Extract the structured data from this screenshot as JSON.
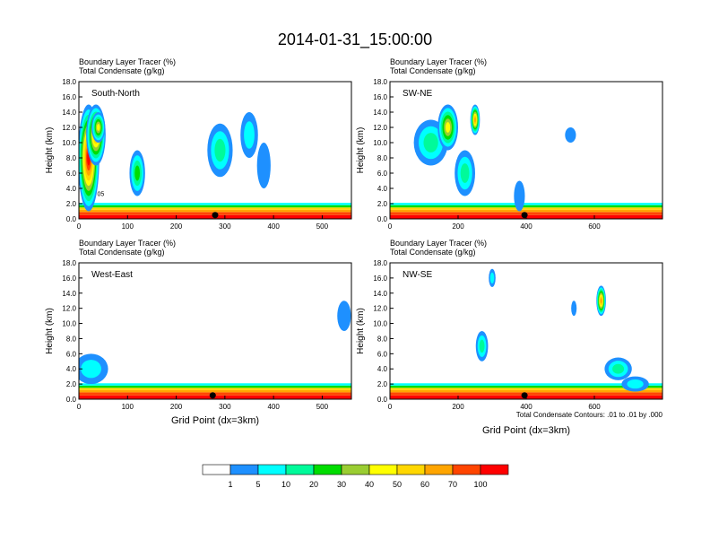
{
  "title": "2014-01-31_15:00:00",
  "xaxis_label": "Grid Point (dx=3km)",
  "contour_note": "Total Condensate Contours: .01 to .01 by .000",
  "chart_data": [
    {
      "type": "heatmap",
      "label": "South-North",
      "subtitle1": "Boundary Layer Tracer    (%)",
      "subtitle2": "Total Condensate   (g/kg)",
      "ylabel": "Height (km)",
      "xlim": [
        0,
        560
      ],
      "ylim": [
        0,
        18
      ],
      "xticks": [
        0,
        100,
        200,
        300,
        400,
        500
      ],
      "yticks": [
        0,
        2,
        4,
        6,
        8,
        10,
        12,
        14,
        16,
        18
      ],
      "marker_x": 280,
      "contour_label": "05"
    },
    {
      "type": "heatmap",
      "label": "SW-NE",
      "subtitle1": "Boundary Layer Tracer    (%)",
      "subtitle2": "Total Condensate   (g/kg)",
      "ylabel": "Height (km)",
      "xlim": [
        0,
        800
      ],
      "ylim": [
        0,
        18
      ],
      "xticks": [
        0,
        200,
        400,
        600
      ],
      "yticks": [
        0,
        2,
        4,
        6,
        8,
        10,
        12,
        14,
        16,
        18
      ],
      "marker_x": 395
    },
    {
      "type": "heatmap",
      "label": "West-East",
      "subtitle1": "Boundary Layer Tracer    (%)",
      "subtitle2": "Total Condensate   (g/kg)",
      "ylabel": "Height (km)",
      "xlim": [
        0,
        560
      ],
      "ylim": [
        0,
        18
      ],
      "xticks": [
        0,
        100,
        200,
        300,
        400,
        500
      ],
      "yticks": [
        0,
        2,
        4,
        6,
        8,
        10,
        12,
        14,
        16,
        18
      ],
      "marker_x": 275
    },
    {
      "type": "heatmap",
      "label": "NW-SE",
      "subtitle1": "Boundary Layer Tracer    (%)",
      "subtitle2": "Total Condensate   (g/kg)",
      "ylabel": "Height (km)",
      "xlim": [
        0,
        800
      ],
      "ylim": [
        0,
        18
      ],
      "xticks": [
        0,
        200,
        400,
        600
      ],
      "yticks": [
        0,
        2,
        4,
        6,
        8,
        10,
        12,
        14,
        16,
        18
      ],
      "marker_x": 395
    }
  ],
  "colorbar": {
    "labels": [
      "1",
      "5",
      "10",
      "20",
      "30",
      "40",
      "50",
      "60",
      "70",
      "100"
    ],
    "colors": [
      "#ffffff",
      "#1e90ff",
      "#00ffff",
      "#00fa9a",
      "#00dd00",
      "#9acd32",
      "#ffff00",
      "#ffd700",
      "#ffa500",
      "#ff4500",
      "#ff0000"
    ]
  }
}
